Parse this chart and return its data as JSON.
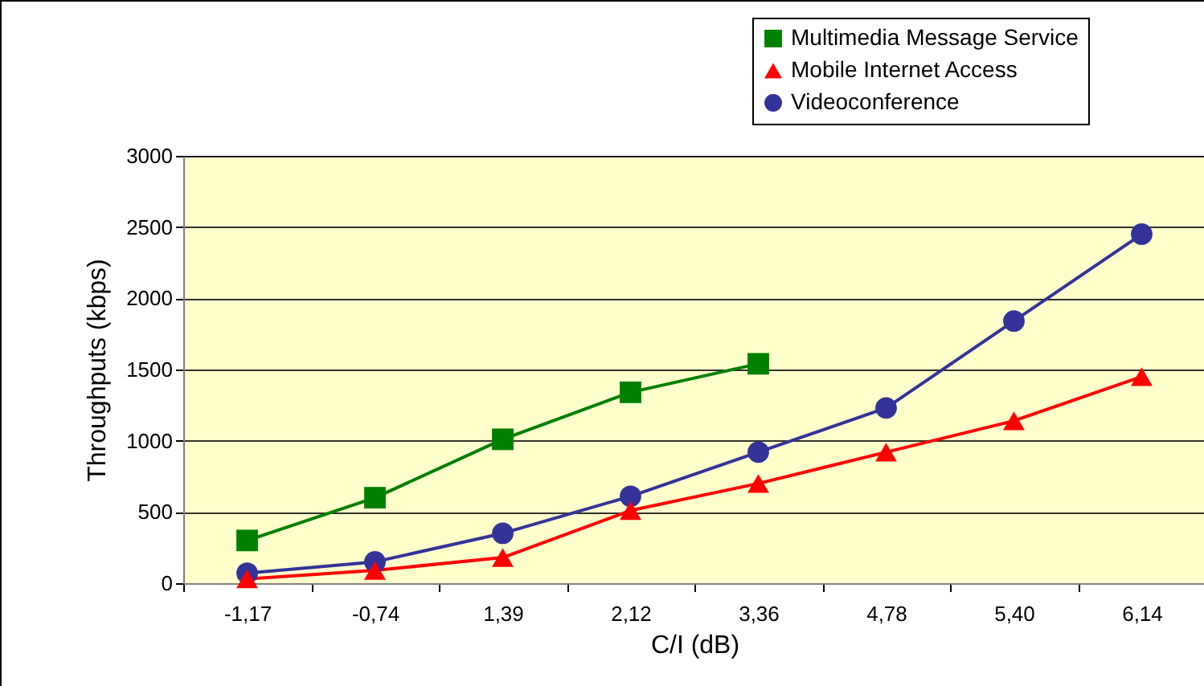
{
  "chart_data": {
    "type": "line",
    "xlabel": "C/I (dB)",
    "ylabel": "Throughputs (kbps)",
    "categories": [
      "-1,17",
      "-0,74",
      "1,39",
      "2,12",
      "3,36",
      "4,78",
      "5,40",
      "6,14"
    ],
    "series": [
      {
        "name": "Multimedia Message Service",
        "color": "#008000",
        "marker": "square",
        "values": [
          300,
          600,
          1010,
          1340,
          1540,
          null,
          null,
          null
        ]
      },
      {
        "name": "Mobile Internet Access",
        "color": "#ff0000",
        "marker": "triangle",
        "values": [
          30,
          90,
          180,
          510,
          700,
          920,
          1140,
          1450
        ]
      },
      {
        "name": "Videoconference",
        "color": "#333399",
        "marker": "circle",
        "values": [
          70,
          150,
          350,
          610,
          920,
          1230,
          1840,
          2450
        ]
      }
    ],
    "ylim": [
      0,
      3000
    ],
    "yticks": [
      0,
      500,
      1000,
      1500,
      2000,
      2500,
      3000
    ],
    "grid": "y",
    "legend": "top right"
  }
}
